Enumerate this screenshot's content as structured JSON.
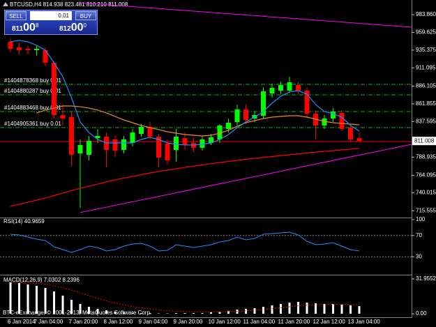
{
  "chart_data": [
    {
      "type": "candlestick",
      "title": "BTCUSD,H4  814.938 823.481 810.210 811.008",
      "categories": [
        "6 Jan 2014",
        null,
        null,
        "7 Jan 04:00",
        null,
        null,
        null,
        "7 Jan 20:00",
        null,
        null,
        null,
        "8 Jan 12:00",
        null,
        null,
        null,
        "9 Jan 04:00",
        null,
        null,
        null,
        "9 Jan 20:00",
        null,
        null,
        null,
        "10 Jan 12:00",
        null,
        null,
        null,
        "11 Jan 04:00",
        null,
        null,
        null,
        "11 Jan 20:00",
        null,
        null,
        null,
        "12 Jan 12:00",
        null,
        null,
        null,
        "13 Jan 04:00",
        null
      ],
      "open": [
        946.7,
        939.0,
        937.1,
        935.2,
        935.2,
        918.0,
        846.5,
        843.6,
        794.0,
        792.1,
        815.0,
        816.9,
        813.1,
        798.8,
        808.3,
        820.7,
        830.3,
        816.9,
        807.4,
        798.8,
        815.0,
        808.3,
        801.7,
        808.3,
        813.1,
        827.4,
        836.9,
        854.1,
        841.7,
        845.5,
        876.1,
        879.9,
        879.9,
        887.5,
        879.9,
        848.4,
        832.2,
        841.7,
        849.4,
        829.3,
        814.938
      ],
      "high": [
        951.4,
        944.8,
        941.9,
        941.9,
        939.0,
        919.9,
        860.8,
        851.3,
        813.1,
        817.9,
        827.4,
        822.6,
        817.9,
        817.9,
        827.4,
        834.1,
        836.9,
        820.7,
        813.1,
        827.4,
        822.6,
        815.0,
        817.9,
        820.7,
        834.1,
        841.7,
        860.8,
        860.8,
        851.3,
        884.6,
        889.4,
        892.3,
        899.0,
        891.3,
        884.6,
        853.2,
        846.5,
        856.0,
        853.2,
        832.2,
        823.481
      ],
      "low": [
        932.3,
        929.5,
        929.5,
        927.6,
        913.3,
        841.7,
        832.2,
        776.8,
        719.6,
        784.5,
        808.3,
        774.9,
        789.2,
        794.0,
        803.6,
        816.9,
        813.1,
        774.9,
        778.8,
        782.6,
        798.8,
        795.9,
        797.8,
        805.5,
        808.3,
        822.6,
        832.2,
        834.1,
        836.9,
        841.7,
        870.3,
        875.1,
        877.0,
        875.1,
        843.6,
        813.1,
        827.4,
        836.9,
        824.5,
        810.2,
        810.21
      ],
      "close": [
        937.1,
        935.2,
        935.2,
        937.1,
        918.0,
        846.5,
        841.7,
        792.1,
        805.5,
        811.2,
        817.9,
        798.8,
        797.8,
        813.1,
        822.6,
        830.3,
        816.9,
        788.3,
        784.5,
        816.9,
        805.5,
        801.7,
        813.1,
        816.0,
        832.2,
        836.0,
        854.1,
        839.8,
        846.5,
        878.9,
        883.7,
        887.5,
        891.3,
        879.9,
        848.4,
        832.2,
        841.7,
        851.3,
        827.4,
        813.1,
        811.008
      ],
      "up_color": "#00ff00",
      "down_color": "#ff0000",
      "lines": [
        {
          "color": "#ff0000",
          "values": [
            721.5,
            724.4,
            727.2,
            730.1,
            733.0,
            736.3,
            739.6,
            743.0,
            746.3,
            749.2,
            752.0,
            754.9,
            757.8,
            760.2,
            762.5,
            764.9,
            767.3,
            769.2,
            771.1,
            773.0,
            774.9,
            776.6,
            778.3,
            779.9,
            781.6,
            783.0,
            784.5,
            785.9,
            787.3,
            788.5,
            789.7,
            790.9,
            792.1,
            793.3,
            794.5,
            795.7,
            796.9,
            797.8,
            798.8,
            799.7,
            800.7
          ]
        },
        {
          "color": "#f08a24",
          "values": [
            null,
            null,
            null,
            849.4,
            853.2,
            856.0,
            858.9,
            858.9,
            857.9,
            856.0,
            853.2,
            849.4,
            844.6,
            839.8,
            836.0,
            832.2,
            829.3,
            826.5,
            823.6,
            821.7,
            819.8,
            818.8,
            817.9,
            818.8,
            821.7,
            825.5,
            831.2,
            836.0,
            838.8,
            841.7,
            843.6,
            844.6,
            845.5,
            845.5,
            843.6,
            840.8,
            837.9,
            836.0,
            835.0,
            834.1,
            833.1
          ]
        },
        {
          "color": "#1e90ff",
          "values": [
            946.7,
            948.6,
            946.7,
            941.9,
            935.2,
            918.0,
            899.0,
            870.3,
            836.9,
            822.6,
            813.1,
            808.3,
            808.3,
            808.3,
            808.3,
            813.1,
            816.0,
            813.1,
            808.3,
            806.4,
            805.5,
            805.5,
            806.4,
            808.3,
            813.1,
            819.8,
            829.3,
            836.9,
            843.6,
            851.3,
            862.7,
            872.2,
            878.0,
            879.9,
            875.1,
            860.8,
            851.3,
            848.4,
            843.6,
            832.2,
            824.5
          ]
        }
      ],
      "orders": [
        {
          "label": "#1404878368 buy 0.01",
          "value": 888.5
        },
        {
          "label": "#1404880287 buy 0.01",
          "value": 874.2
        },
        {
          "label": "#1404883468 buy 0.01",
          "value": 851.2
        },
        {
          "label": "#1404905361 buy 0.01",
          "value": 829.3
        }
      ],
      "order_color": "#00c000",
      "levels": [
        {
          "value": 810.2,
          "color": "#ff0000"
        }
      ],
      "trendlines": [
        {
          "x": [
            8,
            46
          ],
          "y": [
            1000.1,
            966.7
          ],
          "color": "#ff00ff"
        },
        {
          "x": [
            8,
            46
          ],
          "y": [
            713.1,
            806.4
          ],
          "color": "#ff00ff"
        }
      ],
      "current_price": 811.008,
      "ylim": [
        707.2,
        1003.9
      ],
      "yticks": [
        {
          "value": 983.86,
          "label": "983.860"
        },
        959.625,
        935.375,
        911.095,
        886.105,
        861.855,
        837.595,
        788.935,
        764.095,
        740.015,
        715.555
      ]
    },
    {
      "type": "line",
      "title": "RSI(14) 40.9659",
      "color": "#1e90ff",
      "values": [
        72.4,
        71.1,
        67.1,
        63.2,
        60.5,
        48.7,
        43.4,
        38.2,
        43.4,
        50.0,
        47.4,
        40.8,
        43.4,
        50.0,
        53.9,
        55.3,
        50.0,
        40.8,
        42.1,
        52.6,
        50.0,
        47.4,
        50.0,
        52.6,
        57.9,
        60.5,
        67.1,
        61.8,
        64.5,
        72.4,
        73.7,
        75.0,
        76.3,
        71.1,
        59.2,
        52.6,
        53.9,
        56.6,
        50.0,
        43.4,
        40.9659
      ],
      "levels": [
        70,
        30
      ],
      "ylim": [
        0,
        100
      ],
      "yticks": [
        100,
        70,
        30
      ]
    },
    {
      "type": "macd",
      "title": "MACD(12,26,9) 7.0302 8.2396",
      "color": "#ffffff",
      "values": [
        28.8,
        28.2,
        26.9,
        25.6,
        23.7,
        20.5,
        16.6,
        12.8,
        9.0,
        6.4,
        4.5,
        3.2,
        1.9,
        1.3,
        0.6,
        0.6,
        0.6,
        0.3,
        0.3,
        0.6,
        0.6,
        0.6,
        0.6,
        1.3,
        1.9,
        2.6,
        3.8,
        4.5,
        5.1,
        6.4,
        7.7,
        9.0,
        10.2,
        10.9,
        10.2,
        9.6,
        9.0,
        9.0,
        8.3,
        7.7,
        7.0
      ],
      "signal": {
        "color": "#ff0000",
        "values": [
          29.4,
          29.0,
          28.5,
          27.8,
          27.0,
          25.7,
          23.9,
          21.7,
          19.2,
          16.6,
          14.1,
          11.9,
          9.9,
          8.2,
          6.6,
          5.4,
          4.4,
          3.6,
          2.9,
          2.4,
          2.0,
          1.8,
          1.6,
          1.6,
          1.7,
          1.9,
          2.3,
          2.7,
          3.2,
          3.8,
          4.6,
          5.5,
          6.4,
          7.3,
          7.9,
          8.3,
          8.5,
          8.6,
          8.6,
          8.5,
          8.2
        ]
      },
      "annotation": "BTC-eExchange, © 2001-2013, MetaQuotes Software Corp.",
      "ylim": [
        -2.56,
        34.51
      ],
      "yticks": [
        31.9552,
        {
          "value": 0,
          "label": "0.00"
        }
      ]
    }
  ],
  "trade_panel": {
    "sell": "SELL",
    "lot": "0.01",
    "buy": "BUY",
    "bid": [
      "811",
      "00",
      "8"
    ],
    "ask": [
      "812",
      "00",
      "0"
    ]
  }
}
